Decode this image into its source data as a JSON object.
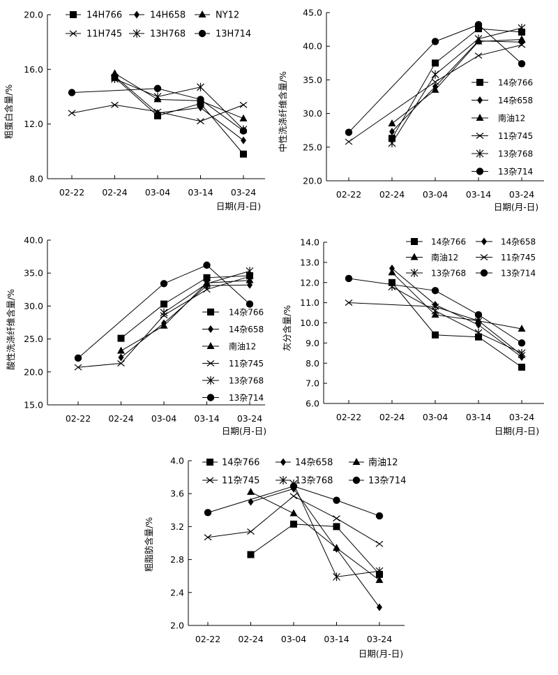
{
  "chart_data": [
    {
      "type": "line",
      "x": [
        "02-22",
        "02-24",
        "03-04",
        "03-14",
        "03-24"
      ],
      "xlabel": "日期(月-日)",
      "ylabel": "粗蛋白含量/%",
      "ylim": [
        8.0,
        20.0
      ],
      "yticks": [
        "8.0",
        "12.0",
        "16.0",
        "20.0"
      ],
      "legend_placement": "top",
      "series": [
        {
          "name": "14H766",
          "marker": "square",
          "values": [
            null,
            15.4,
            12.6,
            13.5,
            9.8
          ]
        },
        {
          "name": "14H658",
          "marker": "diamond",
          "values": [
            null,
            15.5,
            12.8,
            13.2,
            10.8
          ]
        },
        {
          "name": "NY12",
          "marker": "triangle",
          "values": [
            null,
            15.7,
            13.8,
            13.7,
            12.4
          ]
        },
        {
          "name": "11H745",
          "marker": "x",
          "values": [
            12.8,
            13.4,
            12.9,
            12.2,
            13.4
          ]
        },
        {
          "name": "13H768",
          "marker": "asterisk",
          "values": [
            null,
            15.3,
            14.0,
            14.7,
            11.6
          ]
        },
        {
          "name": "13H714",
          "marker": "circle",
          "values": [
            14.3,
            null,
            14.6,
            13.8,
            11.5
          ]
        }
      ]
    },
    {
      "type": "line",
      "x": [
        "02-22",
        "02-24",
        "03-04",
        "03-14",
        "03-24"
      ],
      "xlabel": "日期(月-日)",
      "ylabel": "中性洗涤纤维含量/%",
      "ylim": [
        20.0,
        45.0
      ],
      "yticks": [
        "20.0",
        "25.0",
        "30.0",
        "35.0",
        "40.0",
        "45.0"
      ],
      "legend_placement": "right",
      "series": [
        {
          "name": "14杂766",
          "marker": "square",
          "values": [
            null,
            26.3,
            37.5,
            42.6,
            42.1
          ]
        },
        {
          "name": "14杂658",
          "marker": "diamond",
          "values": [
            null,
            27.3,
            34.0,
            40.8,
            40.6
          ]
        },
        {
          "name": "南油12",
          "marker": "triangle",
          "values": [
            null,
            28.5,
            33.5,
            40.7,
            41.0
          ]
        },
        {
          "name": "11杂745",
          "marker": "x",
          "values": [
            25.8,
            null,
            34.7,
            38.6,
            40.2
          ]
        },
        {
          "name": "13杂768",
          "marker": "asterisk",
          "values": [
            null,
            25.6,
            35.8,
            41.1,
            42.7
          ]
        },
        {
          "name": "13杂714",
          "marker": "circle",
          "values": [
            27.2,
            null,
            40.7,
            43.2,
            37.4
          ]
        }
      ]
    },
    {
      "type": "line",
      "x": [
        "02-22",
        "02-24",
        "03-04",
        "03-14",
        "03-24"
      ],
      "xlabel": "日期(月-日)",
      "ylabel": "酸性洗涤纤维含量/%",
      "ylim": [
        15.0,
        40.0
      ],
      "yticks": [
        "15.0",
        "20.0",
        "25.0",
        "30.0",
        "35.0",
        "40.0"
      ],
      "legend_placement": "right",
      "series": [
        {
          "name": "14杂766",
          "marker": "square",
          "values": [
            null,
            25.1,
            30.3,
            34.3,
            34.6
          ]
        },
        {
          "name": "14杂658",
          "marker": "diamond",
          "values": [
            null,
            22.2,
            27.4,
            33.1,
            33.2
          ]
        },
        {
          "name": "南油12",
          "marker": "triangle",
          "values": [
            null,
            23.2,
            27.0,
            33.5,
            33.9
          ]
        },
        {
          "name": "11杂745",
          "marker": "x",
          "values": [
            20.7,
            21.3,
            28.6,
            32.5,
            34.5
          ]
        },
        {
          "name": "13杂768",
          "marker": "asterisk",
          "values": [
            null,
            null,
            29.0,
            33.4,
            35.3
          ]
        },
        {
          "name": "13杂714",
          "marker": "circle",
          "values": [
            22.1,
            null,
            33.4,
            36.2,
            30.3
          ]
        }
      ]
    },
    {
      "type": "line",
      "x": [
        "02-22",
        "02-24",
        "03-04",
        "03-14",
        "03-24"
      ],
      "xlabel": "日期(月-日)",
      "ylabel": "灰分含量/%",
      "ylim": [
        6.0,
        14.0
      ],
      "yticks": [
        "6.0",
        "7.0",
        "8.0",
        "9.0",
        "10.0",
        "11.0",
        "12.0",
        "13.0",
        "14.0"
      ],
      "legend_placement": "top",
      "series": [
        {
          "name": "14杂766",
          "marker": "square",
          "values": [
            null,
            12.0,
            9.4,
            9.3,
            7.8
          ]
        },
        {
          "name": "14杂658",
          "marker": "diamond",
          "values": [
            null,
            12.7,
            10.9,
            9.9,
            8.3
          ]
        },
        {
          "name": "南油12",
          "marker": "triangle",
          "values": [
            null,
            12.5,
            10.4,
            10.1,
            9.7
          ]
        },
        {
          "name": "11杂745",
          "marker": "x",
          "values": [
            11.0,
            null,
            10.8,
            10.1,
            8.4
          ]
        },
        {
          "name": "13杂768",
          "marker": "asterisk",
          "values": [
            null,
            11.8,
            10.6,
            9.5,
            8.5
          ]
        },
        {
          "name": "13杂714",
          "marker": "circle",
          "values": [
            12.2,
            null,
            11.6,
            10.4,
            9.0
          ]
        }
      ]
    },
    {
      "type": "line",
      "x": [
        "02-22",
        "02-24",
        "03-04",
        "03-14",
        "03-24"
      ],
      "xlabel": "日期(月-日)",
      "ylabel": "粗脂肪含量/%",
      "ylim": [
        2.0,
        4.0
      ],
      "yticks": [
        "2.0",
        "2.4",
        "2.8",
        "3.2",
        "3.6",
        "4.0"
      ],
      "legend_placement": "top",
      "series": [
        {
          "name": "14杂766",
          "marker": "square",
          "values": [
            null,
            2.86,
            3.23,
            3.2,
            2.62
          ]
        },
        {
          "name": "14杂658",
          "marker": "diamond",
          "values": [
            null,
            3.5,
            3.66,
            2.93,
            2.22
          ]
        },
        {
          "name": "南油12",
          "marker": "triangle",
          "values": [
            null,
            3.62,
            3.36,
            2.94,
            2.55
          ]
        },
        {
          "name": "11杂745",
          "marker": "x",
          "values": [
            3.07,
            3.14,
            3.57,
            3.3,
            2.99
          ]
        },
        {
          "name": "13杂768",
          "marker": "asterisk",
          "values": [
            null,
            null,
            3.72,
            2.59,
            2.66
          ]
        },
        {
          "name": "13杂714",
          "marker": "circle",
          "values": [
            3.37,
            null,
            3.69,
            3.52,
            3.33
          ]
        }
      ]
    }
  ]
}
